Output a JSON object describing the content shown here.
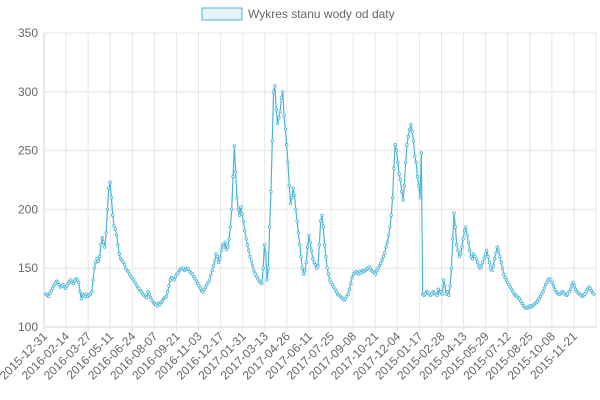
{
  "chart_data": {
    "type": "line",
    "legend": {
      "label": "Wykres stanu wody od daty",
      "position": "top",
      "color": "#4bb5d8"
    },
    "ylim": [
      100,
      350
    ],
    "yticks": [
      100,
      150,
      200,
      250,
      300,
      350
    ],
    "grid": true,
    "xticks": [
      "2015-12-31",
      "2016-02-14",
      "2016-03-27",
      "2016-05-11",
      "2016-06-24",
      "2016-08-07",
      "2016-09-21",
      "2016-11-03",
      "2016-12-17",
      "2017-01-31",
      "2017-03-13",
      "2017-04-26",
      "2017-06-11",
      "2017-07-25",
      "2017-09-08",
      "2017-10-21",
      "2017-12-04",
      "2015-01-17",
      "2015-02-28",
      "2015-04-13",
      "2015-05-29",
      "2015-07-12",
      "2015-08-25",
      "2015-10-08",
      "2015-11-21"
    ],
    "series": [
      {
        "name": "Wykres stanu wody od daty",
        "color": "#4bb5d8",
        "values": [
          128,
          127,
          126,
          129,
          131,
          133,
          135,
          137,
          139,
          138,
          136,
          134,
          135,
          136,
          134,
          133,
          135,
          137,
          139,
          140,
          138,
          137,
          139,
          141,
          140,
          138,
          130,
          124,
          128,
          127,
          126,
          128,
          126,
          127,
          128,
          130,
          140,
          150,
          155,
          158,
          156,
          160,
          170,
          176,
          172,
          168,
          180,
          200,
          218,
          223,
          210,
          195,
          186,
          183,
          178,
          170,
          162,
          158,
          157,
          155,
          153,
          150,
          148,
          147,
          145,
          143,
          141,
          140,
          138,
          136,
          134,
          133,
          131,
          130,
          128,
          127,
          126,
          125,
          130,
          128,
          125,
          123,
          121,
          120,
          119,
          118,
          120,
          119,
          121,
          122,
          124,
          125,
          126,
          130,
          135,
          140,
          142,
          141,
          140,
          143,
          145,
          146,
          148,
          149,
          150,
          150,
          148,
          149,
          150,
          149,
          147,
          146,
          145,
          143,
          141,
          139,
          137,
          135,
          133,
          131,
          130,
          132,
          134,
          136,
          138,
          140,
          144,
          148,
          152,
          156,
          162,
          160,
          155,
          158,
          165,
          170,
          168,
          172,
          166,
          168,
          175,
          185,
          200,
          228,
          254,
          232,
          210,
          200,
          195,
          202,
          196,
          190,
          182,
          175,
          170,
          165,
          160,
          156,
          152,
          148,
          145,
          143,
          141,
          139,
          138,
          137,
          150,
          170,
          163,
          140,
          150,
          185,
          215,
          258,
          300,
          305,
          285,
          273,
          278,
          283,
          295,
          300,
          280,
          268,
          255,
          240,
          220,
          205,
          210,
          218,
          212,
          200,
          190,
          180,
          170,
          160,
          150,
          145,
          148,
          155,
          168,
          178,
          172,
          165,
          158,
          155,
          153,
          150,
          152,
          170,
          190,
          195,
          185,
          170,
          160,
          150,
          145,
          140,
          138,
          136,
          134,
          132,
          130,
          128,
          127,
          126,
          125,
          124,
          123,
          124,
          126,
          128,
          132,
          137,
          142,
          145,
          146,
          147,
          146,
          145,
          147,
          146,
          148,
          147,
          148,
          149,
          150,
          151,
          150,
          148,
          147,
          146,
          145,
          148,
          150,
          152,
          154,
          157,
          160,
          163,
          168,
          172,
          178,
          185,
          195,
          210,
          235,
          255,
          250,
          240,
          230,
          225,
          215,
          208,
          220,
          240,
          255,
          262,
          268,
          272,
          266,
          258,
          245,
          240,
          228,
          220,
          210,
          248,
          128,
          127,
          128,
          130,
          129,
          128,
          127,
          128,
          130,
          129,
          128,
          127,
          132,
          129,
          130,
          128,
          140,
          135,
          128,
          130,
          127,
          135,
          150,
          175,
          197,
          185,
          170,
          165,
          160,
          162,
          168,
          175,
          182,
          185,
          178,
          172,
          165,
          160,
          158,
          162,
          160,
          158,
          155,
          152,
          150,
          152,
          155,
          158,
          162,
          165,
          160,
          155,
          150,
          148,
          152,
          158,
          163,
          168,
          165,
          160,
          155,
          150,
          145,
          142,
          140,
          138,
          136,
          134,
          132,
          130,
          128,
          127,
          126,
          125,
          124,
          122,
          120,
          118,
          117,
          116,
          116,
          117,
          118,
          117,
          118,
          119,
          120,
          121,
          122,
          124,
          126,
          128,
          130,
          133,
          136,
          138,
          140,
          141,
          140,
          138,
          135,
          132,
          130,
          129,
          128,
          128,
          129,
          130,
          129,
          128,
          127,
          128,
          130,
          132,
          135,
          138,
          135,
          132,
          130,
          129,
          128,
          127,
          126,
          127,
          128,
          130,
          132,
          134,
          133,
          131,
          129,
          128
        ]
      }
    ]
  }
}
